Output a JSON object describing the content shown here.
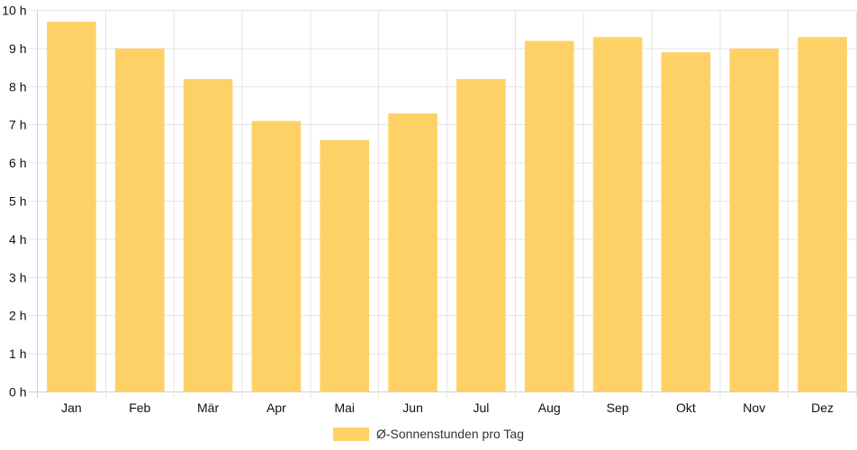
{
  "chart_data": {
    "type": "bar",
    "title": "",
    "xlabel": "",
    "ylabel": "",
    "ylim": [
      0,
      10
    ],
    "y_ticks": [
      "0 h",
      "1 h",
      "2 h",
      "3 h",
      "4 h",
      "5 h",
      "6 h",
      "7 h",
      "8 h",
      "9 h",
      "10 h"
    ],
    "categories": [
      "Jan",
      "Feb",
      "Mär",
      "Apr",
      "Mai",
      "Jun",
      "Jul",
      "Aug",
      "Sep",
      "Okt",
      "Nov",
      "Dez"
    ],
    "series": [
      {
        "name": "Ø-Sonnenstunden pro Tag",
        "color": "#fed166",
        "values": [
          9.7,
          9.0,
          8.2,
          7.1,
          6.6,
          7.3,
          8.2,
          9.2,
          9.3,
          8.9,
          9.0,
          9.3
        ]
      }
    ],
    "grid": true,
    "legend_position": "bottom"
  }
}
